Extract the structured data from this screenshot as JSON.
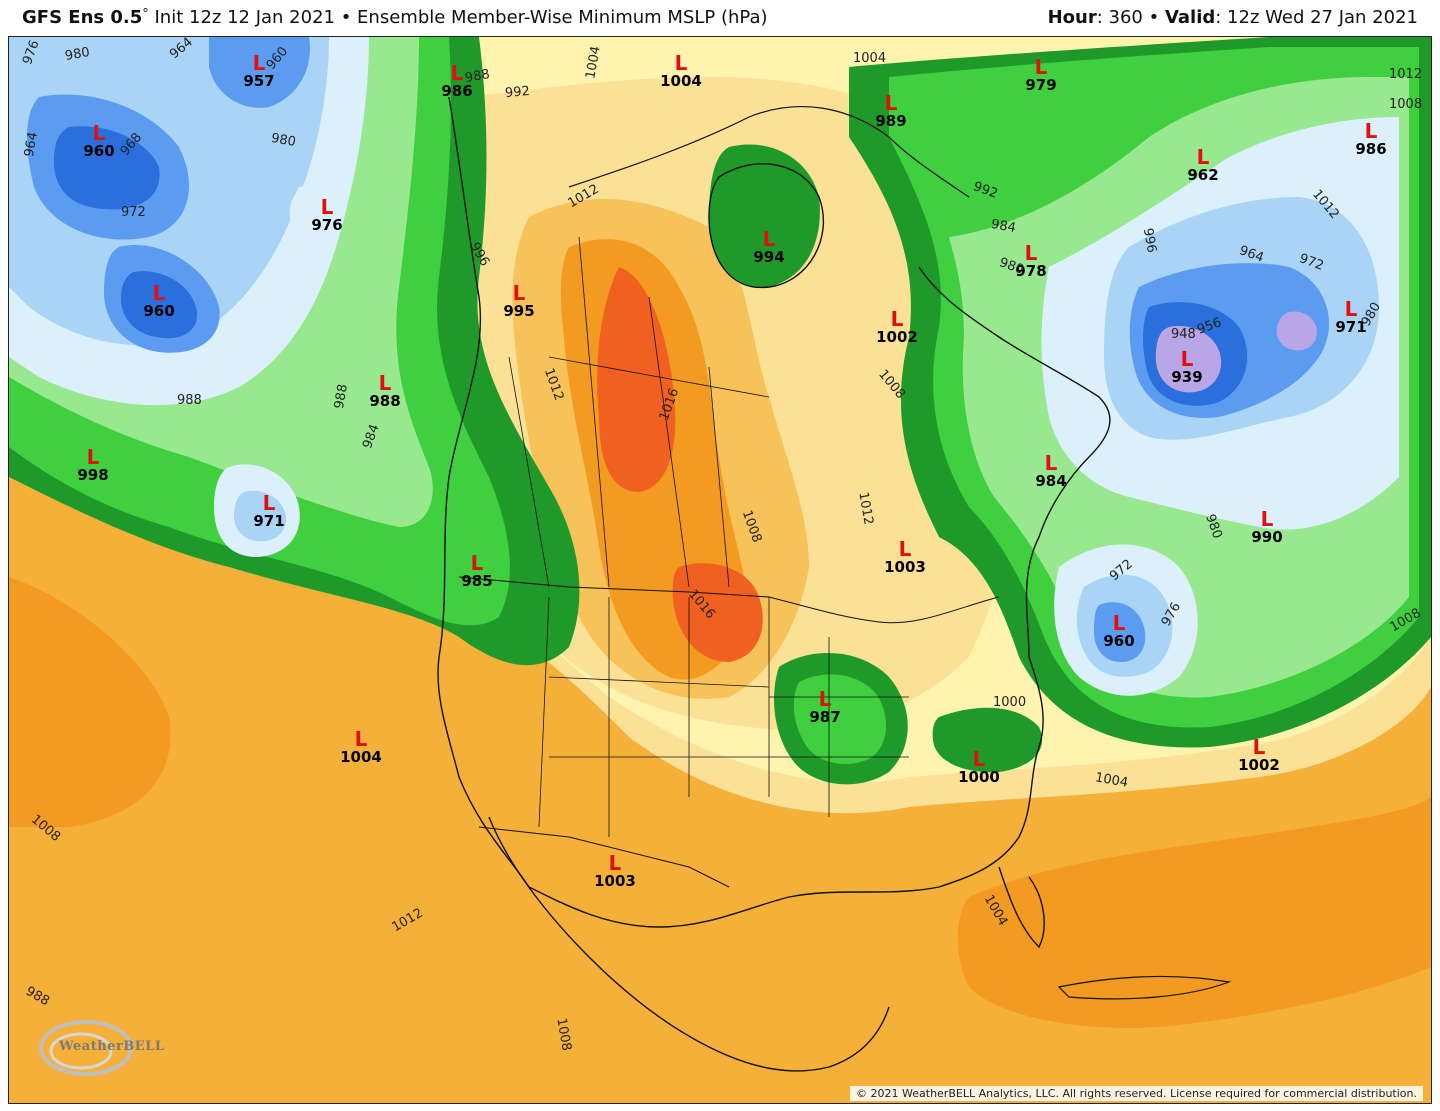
{
  "header": {
    "model": "GFS Ens 0.5",
    "degree": "°",
    "init": " Init 12z 12 Jan 2021",
    "bullet": " • ",
    "product": "Ensemble Member-Wise Minimum MSLP (hPa)",
    "hour_label": "Hour",
    "hour_value": ": 360",
    "valid_label": "Valid",
    "valid_value": ": 12z Wed 27 Jan 2021"
  },
  "colors": {
    "deep_low": "#b9a6e6",
    "blue_dark": "#2a6fdc",
    "blue_mid": "#5c9cf0",
    "blue_light": "#a9d4f5",
    "blue_pale": "#dbf0fb",
    "green_dark": "#1f9a2a",
    "green_mid": "#3fcf3f",
    "green_light": "#98e890",
    "cream": "#fff6b8",
    "tan": "#fbe196",
    "orange_light": "#f7c25a",
    "orange": "#f39a20",
    "orange_red": "#f06020",
    "low_marker": "#e01010"
  },
  "lows": [
    {
      "value": "957"
    },
    {
      "value": "960"
    },
    {
      "value": "960"
    },
    {
      "value": "976"
    },
    {
      "value": "986"
    },
    {
      "value": "1004"
    },
    {
      "value": "979"
    },
    {
      "value": "989"
    },
    {
      "value": "962"
    },
    {
      "value": "986"
    },
    {
      "value": "994"
    },
    {
      "value": "978"
    },
    {
      "value": "995"
    },
    {
      "value": "1002"
    },
    {
      "value": "939"
    },
    {
      "value": "971"
    },
    {
      "value": "988"
    },
    {
      "value": "998"
    },
    {
      "value": "971"
    },
    {
      "value": "985"
    },
    {
      "value": "984"
    },
    {
      "value": "990"
    },
    {
      "value": "1003"
    },
    {
      "value": "960"
    },
    {
      "value": "987"
    },
    {
      "value": "1004"
    },
    {
      "value": "1000"
    },
    {
      "value": "1002"
    },
    {
      "value": "1003"
    }
  ],
  "isobar_labels": [
    "976",
    "980",
    "964",
    "960",
    "968",
    "980",
    "964",
    "972",
    "988",
    "992",
    "1004",
    "1004",
    "1012",
    "996",
    "1012",
    "1016",
    "1016",
    "1008",
    "1012",
    "1008",
    "988",
    "984",
    "988",
    "1004",
    "1008",
    "1012",
    "1008",
    "1012",
    "1008",
    "1012",
    "1004",
    "1000",
    "976",
    "972",
    "980",
    "996",
    "1008",
    "948",
    "956",
    "964",
    "972",
    "980",
    "988",
    "992",
    "984",
    "980"
  ],
  "logo_text": "WeatherBELL",
  "copyright": "© 2021 WeatherBELL Analytics, LLC. All rights reserved. License required for commercial distribution."
}
